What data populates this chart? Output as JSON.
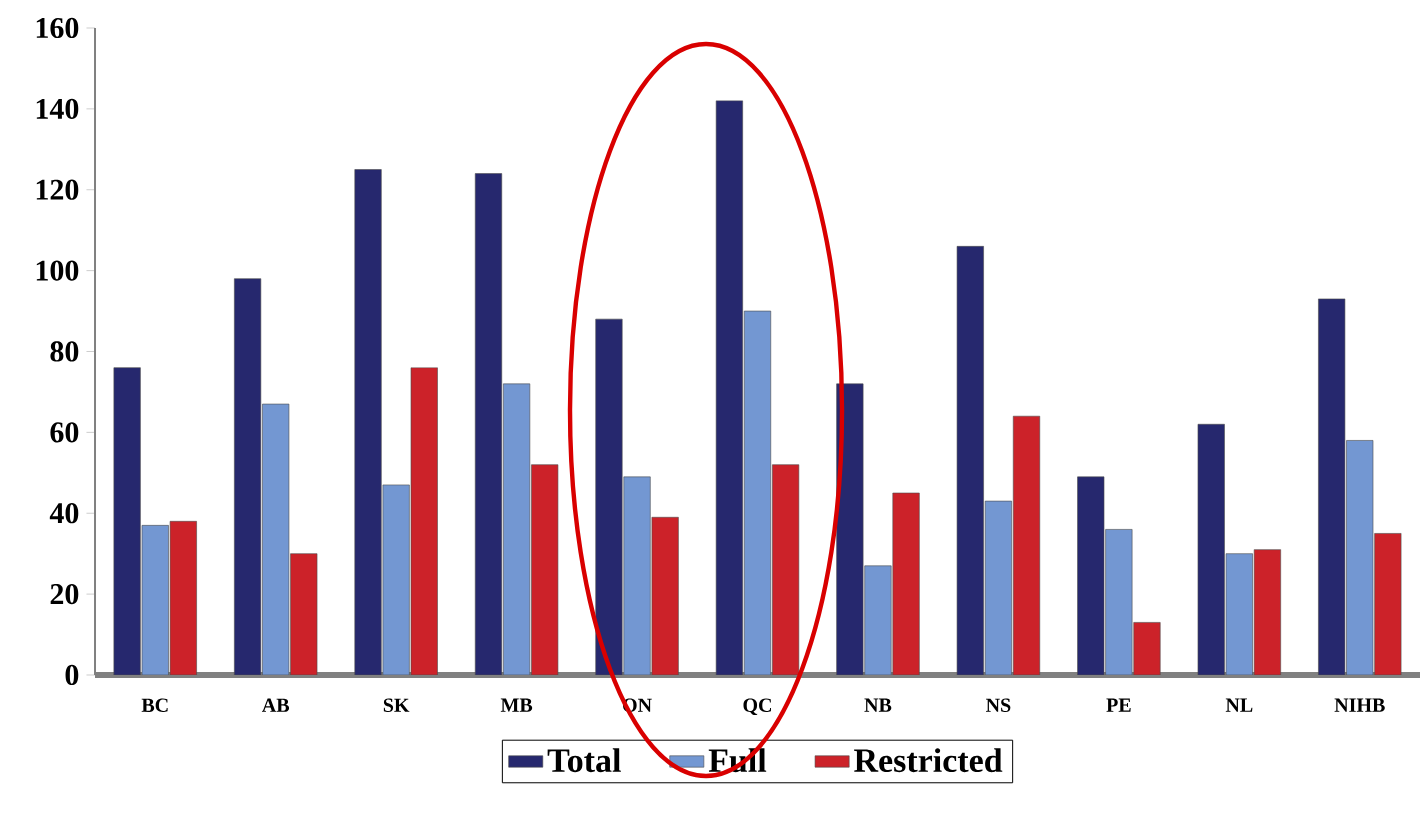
{
  "chart_data": {
    "type": "bar",
    "categories": [
      "BC",
      "AB",
      "SK",
      "MB",
      "ON",
      "QC",
      "NB",
      "NS",
      "PE",
      "NL",
      "NIHB"
    ],
    "series": [
      {
        "name": "Total",
        "color": "#26286e",
        "values": [
          76,
          98,
          125,
          124,
          88,
          142,
          72,
          106,
          49,
          62,
          93
        ]
      },
      {
        "name": "Full",
        "color": "#7397d2",
        "values": [
          37,
          67,
          47,
          72,
          49,
          90,
          27,
          43,
          36,
          30,
          58
        ]
      },
      {
        "name": "Restricted",
        "color": "#cc2229",
        "values": [
          38,
          30,
          76,
          52,
          39,
          52,
          45,
          64,
          13,
          31,
          35
        ]
      }
    ],
    "ylim": [
      0,
      160
    ],
    "yticks": [
      0,
      20,
      40,
      60,
      80,
      100,
      120,
      140,
      160
    ],
    "grid": false,
    "legend": "bottom"
  }
}
